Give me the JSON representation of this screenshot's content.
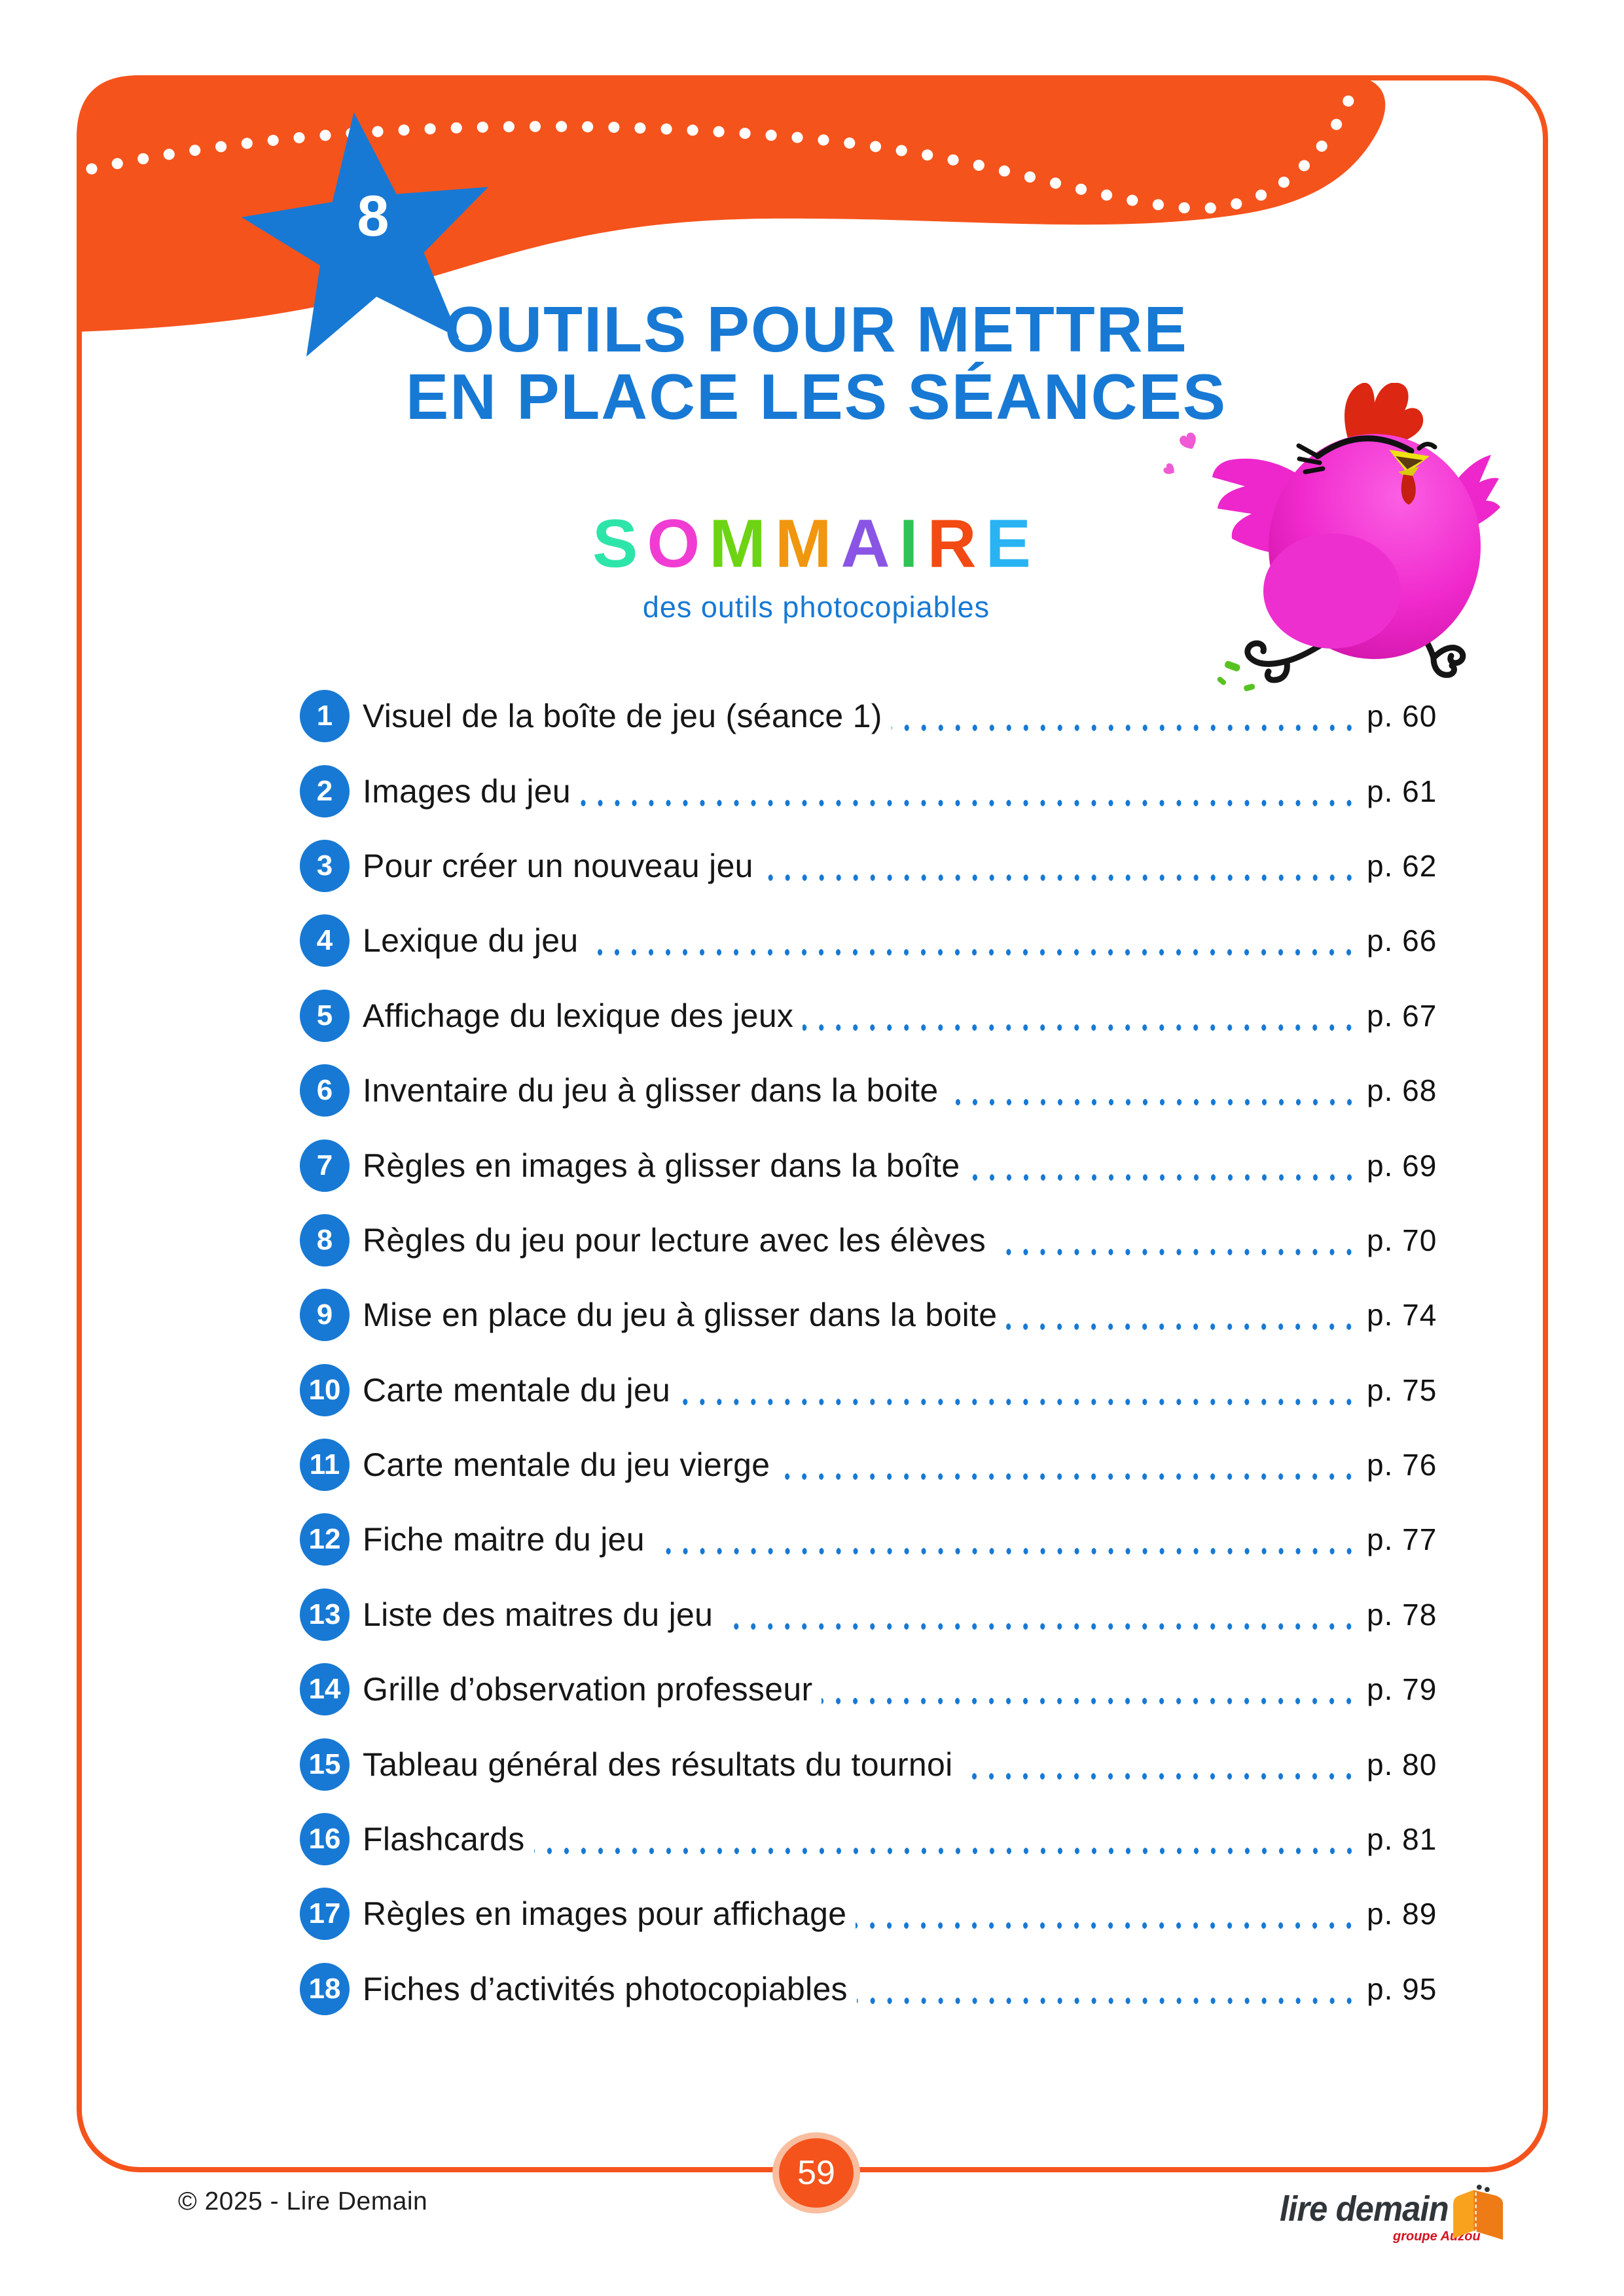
{
  "page": {
    "number": "59"
  },
  "colors": {
    "orange": "#F5531C",
    "peach_ring": "#F8BE9F",
    "blue": "#1779D4",
    "text_dark": "#161616",
    "bird_pink": "#F136D2",
    "logo_red": "#D5121E",
    "logo_dark": "#303539"
  },
  "chapter_star": {
    "number": "8"
  },
  "header": {
    "title_line1": "OUTILS POUR METTRE",
    "title_line2": "EN PLACE LES SÉANCES"
  },
  "sommaire": {
    "word": "SOMMAIRE",
    "letters": [
      {
        "char": "S",
        "color": "#2EE5A9"
      },
      {
        "char": "O",
        "color": "#F03CD3"
      },
      {
        "char": "M",
        "color": "#6CD413"
      },
      {
        "char": "M",
        "color": "#F0960F"
      },
      {
        "char": "A",
        "color": "#8A55E5"
      },
      {
        "char": "I",
        "color": "#2FC256"
      },
      {
        "char": "R",
        "color": "#F24A12"
      },
      {
        "char": "E",
        "color": "#29B3F2"
      }
    ],
    "subtitle": "des outils photocopiables"
  },
  "toc": {
    "page_prefix": "p.",
    "items": [
      {
        "num": "1",
        "label": "Visuel de la boîte de jeu (séance 1)",
        "page": "60"
      },
      {
        "num": "2",
        "label": "Images du jeu",
        "page": "61"
      },
      {
        "num": "3",
        "label": "Pour créer un nouveau jeu",
        "page": "62"
      },
      {
        "num": "4",
        "label": "Lexique du jeu",
        "page": "66"
      },
      {
        "num": "5",
        "label": "Affichage du lexique des jeux",
        "page": "67"
      },
      {
        "num": "6",
        "label": "Inventaire du jeu à glisser dans la boite",
        "page": "68"
      },
      {
        "num": "7",
        "label": "Règles en images à glisser dans la boîte",
        "page": "69"
      },
      {
        "num": "8",
        "label": "Règles du jeu pour lecture avec les élèves",
        "page": "70"
      },
      {
        "num": "9",
        "label": "Mise en place du jeu à glisser dans la boite",
        "page": "74"
      },
      {
        "num": "10",
        "label": "Carte mentale du jeu",
        "page": "75"
      },
      {
        "num": "11",
        "label": "Carte mentale du jeu vierge",
        "page": "76"
      },
      {
        "num": "12",
        "label": "Fiche maitre du jeu",
        "page": "77"
      },
      {
        "num": "13",
        "label": "Liste des maitres du jeu",
        "page": "78"
      },
      {
        "num": "14",
        "label": "Grille d’observation professeur",
        "page": "79"
      },
      {
        "num": "15",
        "label": "Tableau général des résultats du tournoi",
        "page": "80"
      },
      {
        "num": "16",
        "label": "Flashcards",
        "page": "81"
      },
      {
        "num": "17",
        "label": "Règles en images pour affichage",
        "page": "89"
      },
      {
        "num": "18",
        "label": "Fiches d’activités photocopiables",
        "page": "95"
      }
    ]
  },
  "footer": {
    "copyright": "© 2025 - Lire Demain",
    "logo_text": "lire demain",
    "logo_sub": "groupe Auzou"
  },
  "illustrations": {
    "bird": "pink-hen-jumping",
    "logo_book": "open-book"
  }
}
